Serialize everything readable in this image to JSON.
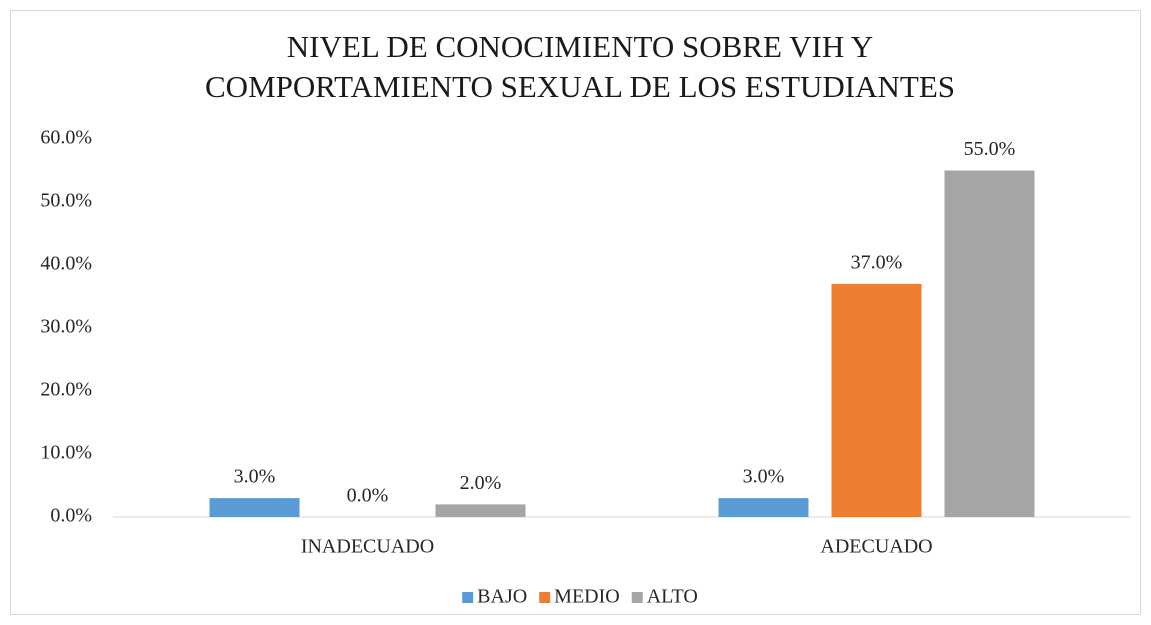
{
  "chart_data": {
    "type": "bar",
    "title": [
      "NIVEL DE CONOCIMIENTO SOBRE VIH Y",
      "COMPORTAMIENTO SEXUAL DE LOS ESTUDIANTES"
    ],
    "categories": [
      "INADECUADO",
      "ADECUADO"
    ],
    "series": [
      {
        "name": "BAJO",
        "color": "#5b9bd5",
        "values": [
          3,
          3
        ],
        "value_labels": [
          "3.0%",
          "3.0%"
        ]
      },
      {
        "name": "MEDIO",
        "color": "#ed7d31",
        "values": [
          0,
          37
        ],
        "value_labels": [
          "0.0%",
          "37.0%"
        ]
      },
      {
        "name": "ALTO",
        "color": "#a5a5a5",
        "values": [
          2,
          55
        ],
        "value_labels": [
          "2.0%",
          "55.0%"
        ]
      }
    ],
    "ylim": [
      0,
      60
    ],
    "yticks": [
      {
        "value": 0,
        "label": "0.0%"
      },
      {
        "value": 10,
        "label": "10.0%"
      },
      {
        "value": 20,
        "label": "20.0%"
      },
      {
        "value": 30,
        "label": "30.0%"
      },
      {
        "value": 40,
        "label": "40.0%"
      },
      {
        "value": 50,
        "label": "50.0%"
      },
      {
        "value": 60,
        "label": "60.0%"
      }
    ],
    "grid": false,
    "legend": "bottom"
  }
}
